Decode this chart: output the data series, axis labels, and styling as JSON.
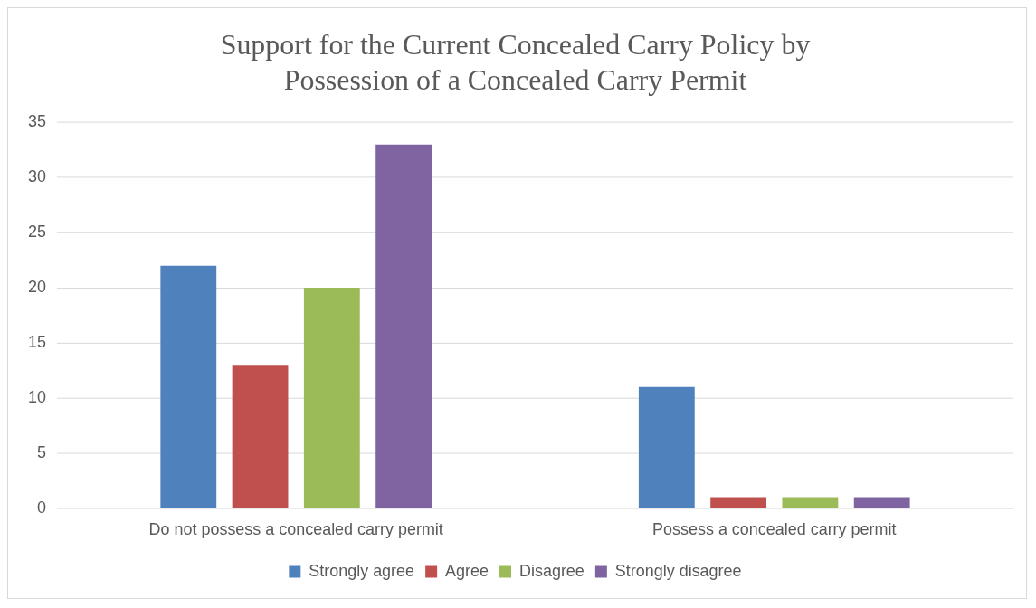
{
  "chart_data": {
    "type": "bar",
    "title": "Support for the Current Concealed Carry Policy by\nPossession of a Concealed Carry Permit",
    "categories": [
      "Do not possess a concealed carry permit",
      "Possess a concealed carry permit"
    ],
    "series": [
      {
        "name": "Strongly agree",
        "color": "#4f81bd",
        "values": [
          22,
          11
        ]
      },
      {
        "name": "Agree",
        "color": "#c0504d",
        "values": [
          13,
          1
        ]
      },
      {
        "name": "Disagree",
        "color": "#9bbb59",
        "values": [
          20,
          1
        ]
      },
      {
        "name": "Strongly disagree",
        "color": "#8064a2",
        "values": [
          33,
          1
        ]
      }
    ],
    "ylim": [
      0,
      35
    ],
    "yticks": [
      0,
      5,
      10,
      15,
      20,
      25,
      30,
      35
    ],
    "grid": "y",
    "legend": "bottom"
  }
}
